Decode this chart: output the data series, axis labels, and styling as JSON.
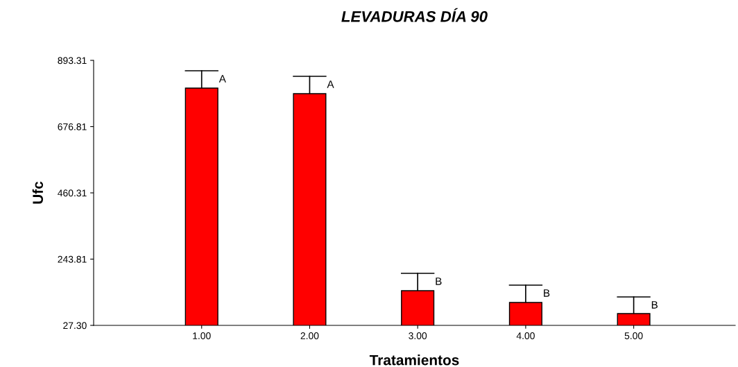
{
  "chart_data": {
    "type": "bar",
    "title": "LEVADURAS DÍA 90",
    "xlabel": "Tratamientos",
    "ylabel": "Ufc",
    "categories": [
      "1.00",
      "2.00",
      "3.00",
      "4.00",
      "5.00"
    ],
    "values": [
      802.6,
      784.5,
      140.7,
      102.1,
      65.8
    ],
    "errors": [
      [
        802.6,
        859.3
      ],
      [
        784.5,
        841.2
      ],
      [
        140.7,
        197.3
      ],
      [
        102.1,
        158.8
      ],
      [
        65.8,
        120.3
      ]
    ],
    "color": "#ff0000",
    "ylim": [
      27.3,
      893.31
    ],
    "yticks": [
      {
        "value": 27.3,
        "label": "27.30"
      },
      {
        "value": 243.81,
        "label": "243.81"
      },
      {
        "value": 460.31,
        "label": "460.31"
      },
      {
        "value": 676.81,
        "label": "676.81"
      },
      {
        "value": 893.31,
        "label": "893.31"
      }
    ],
    "annotations": [
      {
        "text": "A",
        "x": "1.00",
        "y": 859.3
      },
      {
        "text": "A",
        "x": "2.00",
        "y": 841.2
      },
      {
        "text": "B",
        "x": "3.00",
        "y": 197.3
      },
      {
        "text": "B",
        "x": "4.00",
        "y": 158.8
      },
      {
        "text": "B",
        "x": "5.00",
        "y": 120.3
      }
    ],
    "grid": false,
    "legend": false
  }
}
